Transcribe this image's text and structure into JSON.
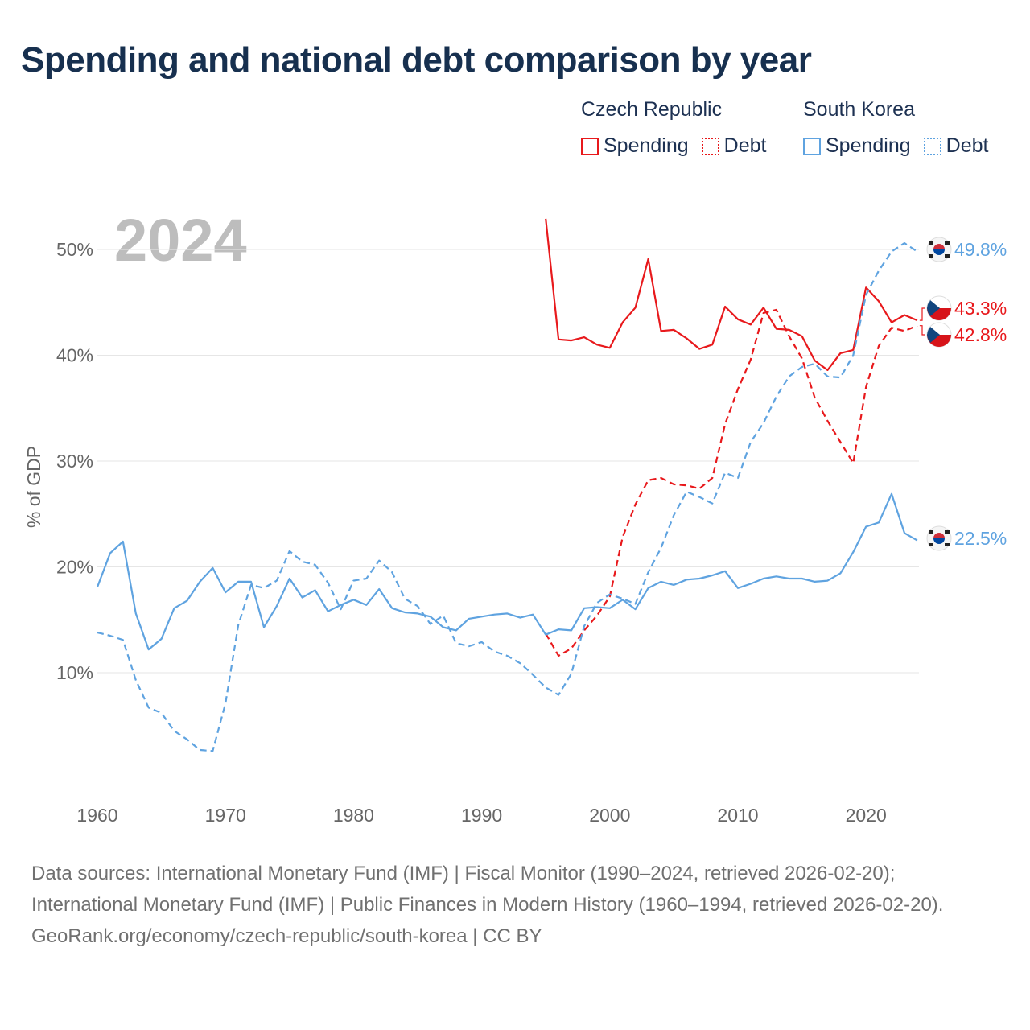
{
  "title": "Spending and national debt comparison by year",
  "legend": {
    "groups": [
      {
        "country": "Czech Republic",
        "color": "#e8191c",
        "items": [
          {
            "label": "Spending",
            "style": "solid"
          },
          {
            "label": "Debt",
            "style": "dotted"
          }
        ]
      },
      {
        "country": "South Korea",
        "color": "#5fa3e0",
        "items": [
          {
            "label": "Spending",
            "style": "solid"
          },
          {
            "label": "Debt",
            "style": "dotted"
          }
        ]
      }
    ]
  },
  "year_watermark": "2024",
  "footer": {
    "sources": "Data sources: International Monetary Fund (IMF) | Fiscal Monitor (1990–2024, retrieved 2026-02-20); International Monetary Fund (IMF) | Public Finances in Modern History (1960–1994, retrieved 2026-02-20).",
    "attribution": "GeoRank.org/economy/czech-republic/south-korea | CC BY"
  },
  "chart_data": {
    "type": "line",
    "title": "Spending and national debt comparison by year",
    "xlabel": "",
    "ylabel": "% of GDP",
    "xlim": [
      1960,
      2024
    ],
    "ylim": [
      0,
      55
    ],
    "x_ticks": [
      1960,
      1970,
      1980,
      1990,
      2000,
      2010,
      2020
    ],
    "y_ticks": [
      10,
      20,
      30,
      40,
      50
    ],
    "y_tick_labels": [
      "10%",
      "20%",
      "30%",
      "40%",
      "50%"
    ],
    "grid": true,
    "series": [
      {
        "name": "Czech Republic Spending",
        "color": "#e8191c",
        "dash": "solid",
        "end_label": "43.3%",
        "flag": "czech",
        "x": [
          1995,
          1996,
          1997,
          1998,
          1999,
          2000,
          2001,
          2002,
          2003,
          2004,
          2005,
          2006,
          2007,
          2008,
          2009,
          2010,
          2011,
          2012,
          2013,
          2014,
          2015,
          2016,
          2017,
          2018,
          2019,
          2020,
          2021,
          2022,
          2023,
          2024
        ],
        "y": [
          52.9,
          41.5,
          41.4,
          41.7,
          41.0,
          40.7,
          43.1,
          44.5,
          49.1,
          42.3,
          42.4,
          41.6,
          40.6,
          41.0,
          44.6,
          43.4,
          42.9,
          44.5,
          42.5,
          42.4,
          41.8,
          39.5,
          38.6,
          40.2,
          40.5,
          46.4,
          45.1,
          43.1,
          43.8,
          43.3
        ]
      },
      {
        "name": "Czech Republic Debt",
        "color": "#e8191c",
        "dash": "dashed",
        "end_label": "42.8%",
        "flag": "czech",
        "x": [
          1995,
          1996,
          1997,
          1998,
          1999,
          2000,
          2001,
          2002,
          2003,
          2004,
          2005,
          2006,
          2007,
          2008,
          2009,
          2010,
          2011,
          2012,
          2013,
          2014,
          2015,
          2016,
          2017,
          2018,
          2019,
          2020,
          2021,
          2022,
          2023,
          2024
        ],
        "y": [
          13.7,
          11.6,
          12.3,
          14.0,
          15.4,
          17.2,
          22.8,
          25.9,
          28.2,
          28.4,
          27.8,
          27.7,
          27.4,
          28.4,
          33.5,
          36.8,
          39.6,
          44.0,
          44.3,
          41.8,
          39.7,
          36.0,
          33.8,
          31.8,
          29.8,
          37.0,
          40.9,
          42.6,
          42.3,
          42.8
        ]
      },
      {
        "name": "South Korea Spending",
        "color": "#5fa3e0",
        "dash": "solid",
        "end_label": "22.5%",
        "flag": "korea",
        "x": [
          1960,
          1961,
          1962,
          1963,
          1964,
          1965,
          1966,
          1967,
          1968,
          1969,
          1970,
          1971,
          1972,
          1973,
          1974,
          1975,
          1976,
          1977,
          1978,
          1979,
          1980,
          1981,
          1982,
          1983,
          1984,
          1985,
          1986,
          1987,
          1988,
          1989,
          1990,
          1991,
          1992,
          1993,
          1994,
          1995,
          1996,
          1997,
          1998,
          1999,
          2000,
          2001,
          2002,
          2003,
          2004,
          2005,
          2006,
          2007,
          2008,
          2009,
          2010,
          2011,
          2012,
          2013,
          2014,
          2015,
          2016,
          2017,
          2018,
          2019,
          2020,
          2021,
          2022,
          2023,
          2024
        ],
        "y": [
          18.1,
          21.3,
          22.4,
          15.6,
          12.2,
          13.2,
          16.1,
          16.8,
          18.6,
          19.9,
          17.6,
          18.6,
          18.6,
          14.3,
          16.3,
          18.9,
          17.1,
          17.8,
          15.8,
          16.4,
          16.9,
          16.4,
          17.9,
          16.1,
          15.7,
          15.6,
          15.3,
          14.3,
          14.0,
          15.1,
          15.3,
          15.5,
          15.6,
          15.2,
          15.5,
          13.6,
          14.1,
          14.0,
          16.1,
          16.2,
          16.1,
          16.9,
          16.0,
          18.0,
          18.6,
          18.3,
          18.8,
          18.9,
          19.2,
          19.6,
          18.0,
          18.4,
          18.9,
          19.1,
          18.9,
          18.9,
          18.6,
          18.7,
          19.4,
          21.4,
          23.8,
          24.2,
          26.9,
          23.2,
          22.5
        ]
      },
      {
        "name": "South Korea Debt",
        "color": "#5fa3e0",
        "dash": "dashed",
        "end_label": "49.8%",
        "flag": "korea",
        "x": [
          1960,
          1961,
          1962,
          1963,
          1964,
          1965,
          1966,
          1967,
          1968,
          1969,
          1970,
          1971,
          1972,
          1973,
          1974,
          1975,
          1976,
          1977,
          1978,
          1979,
          1980,
          1981,
          1982,
          1983,
          1984,
          1985,
          1986,
          1987,
          1988,
          1989,
          1990,
          1991,
          1992,
          1993,
          1994,
          1995,
          1996,
          1997,
          1998,
          1999,
          2000,
          2001,
          2002,
          2003,
          2004,
          2005,
          2006,
          2007,
          2008,
          2009,
          2010,
          2011,
          2012,
          2013,
          2014,
          2015,
          2016,
          2017,
          2018,
          2019,
          2020,
          2021,
          2022,
          2023,
          2024
        ],
        "y": [
          13.8,
          13.5,
          13.1,
          9.3,
          6.7,
          6.2,
          4.5,
          3.7,
          2.7,
          2.6,
          7.1,
          14.5,
          18.3,
          18.0,
          18.7,
          21.5,
          20.5,
          20.2,
          18.5,
          16.0,
          18.7,
          18.9,
          20.6,
          19.5,
          17.0,
          16.3,
          14.6,
          15.4,
          12.8,
          12.5,
          12.9,
          12.0,
          11.6,
          10.9,
          9.8,
          8.6,
          7.9,
          9.9,
          14.4,
          16.6,
          17.4,
          17.0,
          16.5,
          19.5,
          21.8,
          24.9,
          27.1,
          26.6,
          26.0,
          28.9,
          28.4,
          31.8,
          33.6,
          36.1,
          38.0,
          38.9,
          39.2,
          38.0,
          37.9,
          40.0,
          45.7,
          48.0,
          49.8,
          50.6,
          49.8
        ]
      }
    ]
  }
}
